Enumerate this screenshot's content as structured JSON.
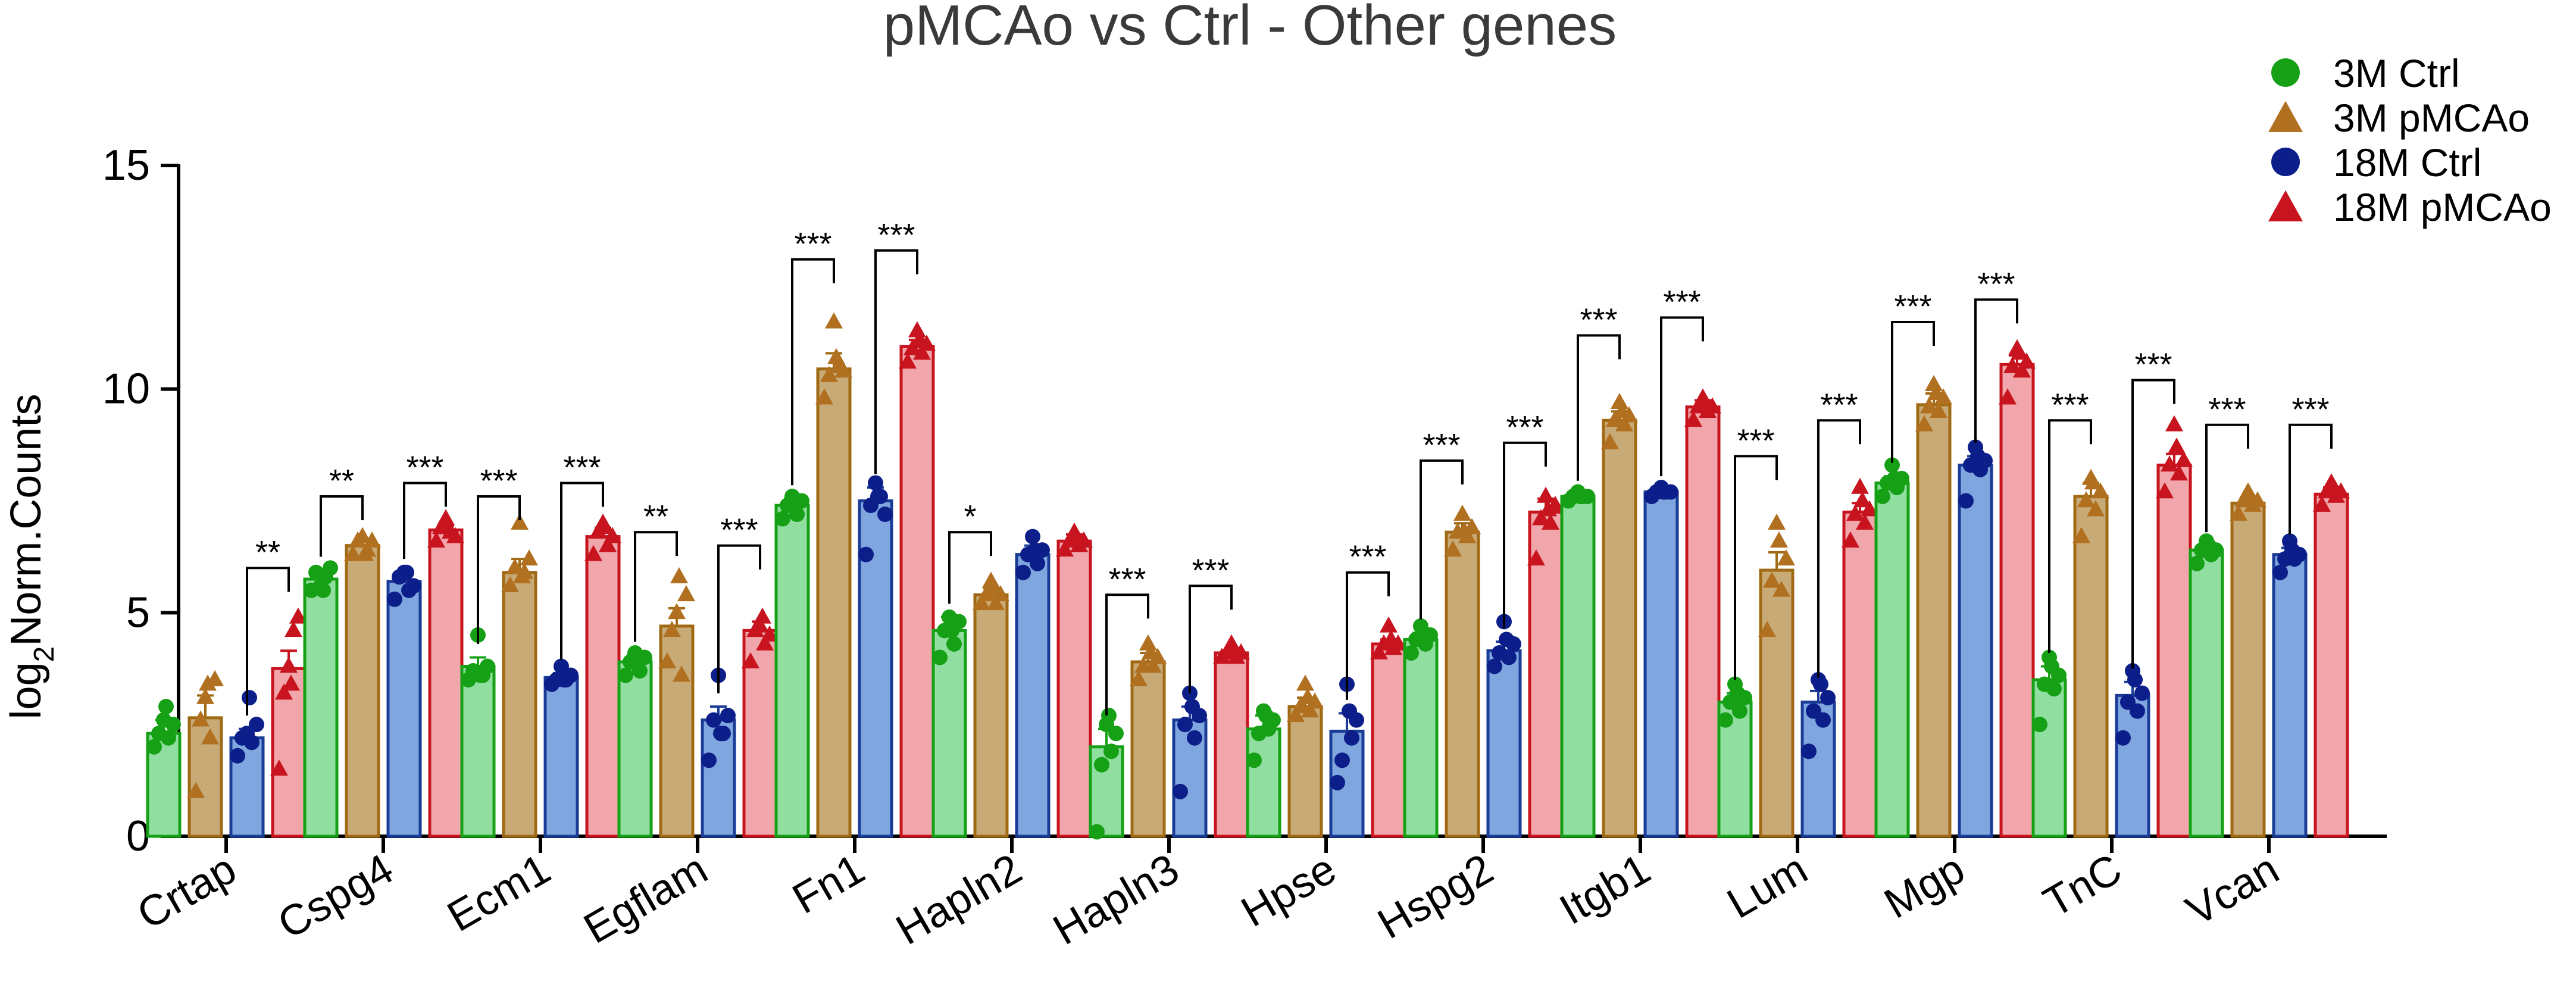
{
  "chart_data": {
    "type": "bar",
    "title": "pMCAo vs Ctrl - Other genes",
    "xlabel": "",
    "ylabel_parts": {
      "base": "log",
      "sub": "2",
      "rest": "Norm.Counts"
    },
    "ylim": [
      0,
      15
    ],
    "yticks": [
      "0",
      "5",
      "10",
      "15"
    ],
    "ytick_values": [
      0,
      5,
      10,
      15
    ],
    "legend_position": "top-right",
    "categories": [
      "Crtap",
      "Cspg4",
      "Ecm1",
      "Egflam",
      "Fn1",
      "Hapln2",
      "Hapln3",
      "Hpse",
      "Hspg2",
      "Itgb1",
      "Lum",
      "Mgp",
      "TnC",
      "Vcan"
    ],
    "series": [
      {
        "name": "3M Ctrl",
        "marker": "circle",
        "fill": "#90dfa0",
        "stroke": "#16a016",
        "point": "#16a016",
        "values": [
          2.3,
          5.75,
          3.8,
          3.9,
          7.4,
          4.6,
          2.0,
          2.4,
          4.4,
          7.6,
          3.0,
          7.9,
          3.5,
          6.4
        ],
        "errors": [
          0.3,
          0.2,
          0.2,
          0.15,
          0.15,
          0.3,
          0.4,
          0.3,
          0.15,
          0.05,
          0.2,
          0.15,
          0.3,
          0.1
        ]
      },
      {
        "name": "3M pMCAo",
        "marker": "triangle",
        "fill": "#c8aa76",
        "stroke": "#a06a14",
        "point": "#b07020",
        "values": [
          2.65,
          6.5,
          5.9,
          4.7,
          10.45,
          5.4,
          3.9,
          2.9,
          6.8,
          9.3,
          5.95,
          9.65,
          7.6,
          7.45
        ],
        "errors": [
          0.5,
          0.15,
          0.3,
          0.4,
          0.35,
          0.15,
          0.2,
          0.2,
          0.2,
          0.2,
          0.4,
          0.25,
          0.3,
          0.1
        ]
      },
      {
        "name": "18M Ctrl",
        "marker": "circle",
        "fill": "#7fa6de",
        "stroke": "#1a3c96",
        "point": "#0c1e8a",
        "values": [
          2.2,
          5.7,
          3.55,
          2.6,
          7.5,
          6.3,
          2.6,
          2.35,
          4.15,
          7.7,
          3.0,
          8.3,
          3.15,
          6.3
        ],
        "errors": [
          0.2,
          0.2,
          0.1,
          0.3,
          0.3,
          0.2,
          0.3,
          0.4,
          0.2,
          0.05,
          0.25,
          0.2,
          0.3,
          0.15
        ]
      },
      {
        "name": "18M pMCAo",
        "marker": "triangle",
        "fill": "#f0a6aa",
        "stroke": "#c8141e",
        "point": "#c8141e",
        "values": [
          3.75,
          6.85,
          6.7,
          4.6,
          10.95,
          6.6,
          4.1,
          4.3,
          7.25,
          9.6,
          7.25,
          10.55,
          8.3,
          7.65
        ],
        "errors": [
          0.4,
          0.1,
          0.2,
          0.2,
          0.15,
          0.15,
          0.05,
          0.1,
          0.3,
          0.15,
          0.2,
          0.2,
          0.25,
          0.15
        ]
      }
    ],
    "points": [
      [
        [
          2.0,
          2.3,
          2.6,
          2.2,
          2.5,
          2.9
        ],
        [
          1.0,
          2.6,
          3.1,
          2.2,
          3.5,
          3.4
        ],
        [
          1.8,
          2.2,
          2.3,
          2.1,
          2.5,
          3.1
        ],
        [
          1.5,
          3.2,
          3.8,
          4.6,
          4.9,
          3.4
        ]
      ],
      [
        [
          5.5,
          5.9,
          5.6,
          5.8,
          6.0,
          5.5
        ],
        [
          6.3,
          6.6,
          6.7,
          6.4,
          6.6,
          6.3
        ],
        [
          5.3,
          5.8,
          5.9,
          5.5,
          5.6,
          5.9
        ],
        [
          6.6,
          6.9,
          7.1,
          6.8,
          6.7,
          6.9
        ]
      ],
      [
        [
          3.5,
          3.7,
          4.5,
          3.6,
          3.8,
          3.6
        ],
        [
          5.6,
          6.0,
          7.0,
          5.9,
          6.2,
          5.8
        ],
        [
          3.4,
          3.5,
          3.8,
          3.5,
          3.6,
          3.5
        ],
        [
          6.3,
          6.8,
          7.0,
          6.5,
          6.7,
          6.9
        ]
      ],
      [
        [
          3.6,
          3.9,
          4.1,
          3.7,
          4.0,
          4.0
        ],
        [
          3.9,
          4.6,
          5.0,
          3.6,
          5.4,
          5.8
        ],
        [
          1.7,
          2.6,
          3.6,
          2.3,
          2.7,
          2.3
        ],
        [
          3.9,
          4.6,
          4.7,
          4.3,
          4.5,
          4.9
        ]
      ],
      [
        [
          7.1,
          7.4,
          7.6,
          7.2,
          7.5,
          7.5
        ],
        [
          9.8,
          10.3,
          11.5,
          10.5,
          10.4,
          10.7
        ],
        [
          6.3,
          7.4,
          7.9,
          7.6,
          7.2,
          7.6
        ],
        [
          10.6,
          10.9,
          11.3,
          10.8,
          11.0,
          11.1
        ]
      ],
      [
        [
          4.0,
          4.6,
          4.9,
          4.3,
          4.8,
          4.6
        ],
        [
          5.2,
          5.4,
          5.7,
          5.2,
          5.4,
          5.5
        ],
        [
          5.9,
          6.3,
          6.7,
          6.1,
          6.4,
          6.4
        ],
        [
          6.4,
          6.6,
          6.8,
          6.5,
          6.6,
          6.7
        ]
      ],
      [
        [
          0.1,
          1.6,
          2.5,
          1.9,
          2.3,
          2.7
        ],
        [
          3.5,
          3.8,
          4.3,
          3.8,
          4.0,
          4.1
        ],
        [
          1.0,
          2.5,
          3.2,
          2.2,
          2.7,
          2.9
        ],
        [
          4.0,
          4.1,
          4.3,
          4.0,
          4.1,
          4.2
        ]
      ],
      [
        [
          1.7,
          2.3,
          2.8,
          2.4,
          2.6,
          2.7
        ],
        [
          2.7,
          2.9,
          3.4,
          2.8,
          3.0,
          3.1
        ],
        [
          1.2,
          1.7,
          3.4,
          2.2,
          2.6,
          2.8
        ],
        [
          4.1,
          4.3,
          4.7,
          4.2,
          4.3,
          4.4
        ]
      ],
      [
        [
          4.1,
          4.4,
          4.7,
          4.3,
          4.5,
          4.4
        ],
        [
          6.4,
          6.8,
          7.2,
          6.7,
          6.9,
          6.8
        ],
        [
          3.8,
          4.1,
          4.8,
          4.0,
          4.3,
          4.4
        ],
        [
          6.2,
          7.1,
          7.6,
          7.0,
          7.4,
          7.3
        ]
      ],
      [
        [
          7.5,
          7.6,
          7.7,
          7.6,
          7.6,
          7.6
        ],
        [
          8.8,
          9.3,
          9.7,
          9.2,
          9.4,
          9.5
        ],
        [
          7.6,
          7.7,
          7.8,
          7.7,
          7.7,
          7.7
        ],
        [
          9.3,
          9.6,
          9.8,
          9.5,
          9.6,
          9.7
        ]
      ],
      [
        [
          2.6,
          3.0,
          3.4,
          2.8,
          3.1,
          3.2
        ],
        [
          4.6,
          5.7,
          7.0,
          5.5,
          6.2,
          6.6
        ],
        [
          1.9,
          2.8,
          3.5,
          2.6,
          3.1,
          3.4
        ],
        [
          6.6,
          7.2,
          7.8,
          7.0,
          7.3,
          7.5
        ]
      ],
      [
        [
          7.6,
          7.9,
          8.3,
          7.8,
          8.0,
          8.0
        ],
        [
          9.2,
          9.6,
          10.1,
          9.5,
          9.8,
          9.9
        ],
        [
          7.5,
          8.3,
          8.7,
          8.2,
          8.4,
          8.5
        ],
        [
          9.8,
          10.5,
          10.9,
          10.4,
          10.6,
          10.8
        ]
      ],
      [
        [
          2.5,
          3.4,
          4.0,
          3.3,
          3.6,
          3.8
        ],
        [
          6.7,
          7.5,
          8.0,
          7.3,
          7.7,
          7.9
        ],
        [
          2.2,
          3.0,
          3.7,
          2.8,
          3.2,
          3.5
        ],
        [
          7.7,
          8.3,
          9.2,
          8.1,
          8.4,
          8.7
        ]
      ],
      [
        [
          6.1,
          6.4,
          6.6,
          6.3,
          6.4,
          6.5
        ],
        [
          7.2,
          7.5,
          7.7,
          7.4,
          7.5,
          7.6
        ],
        [
          5.9,
          6.2,
          6.6,
          6.2,
          6.3,
          6.4
        ],
        [
          7.4,
          7.7,
          7.9,
          7.6,
          7.7,
          7.8
        ]
      ]
    ],
    "significance": [
      {
        "category": 0,
        "pair": "18M",
        "label": "**",
        "y": 6.0
      },
      {
        "category": 1,
        "pair": "3M",
        "label": "**",
        "y": 7.6
      },
      {
        "category": 1,
        "pair": "18M",
        "label": "***",
        "y": 7.9
      },
      {
        "category": 2,
        "pair": "3M",
        "label": "***",
        "y": 7.6
      },
      {
        "category": 2,
        "pair": "18M",
        "label": "***",
        "y": 7.9
      },
      {
        "category": 3,
        "pair": "3M",
        "label": "**",
        "y": 6.8
      },
      {
        "category": 3,
        "pair": "18M",
        "label": "***",
        "y": 6.5
      },
      {
        "category": 4,
        "pair": "3M",
        "label": "***",
        "y": 12.9
      },
      {
        "category": 4,
        "pair": "18M",
        "label": "***",
        "y": 13.1
      },
      {
        "category": 5,
        "pair": "3M",
        "label": "*",
        "y": 6.8
      },
      {
        "category": 6,
        "pair": "3M",
        "label": "***",
        "y": 5.4
      },
      {
        "category": 6,
        "pair": "18M",
        "label": "***",
        "y": 5.6
      },
      {
        "category": 7,
        "pair": "18M",
        "label": "***",
        "y": 5.9
      },
      {
        "category": 8,
        "pair": "3M",
        "label": "***",
        "y": 8.4
      },
      {
        "category": 8,
        "pair": "18M",
        "label": "***",
        "y": 8.8
      },
      {
        "category": 9,
        "pair": "3M",
        "label": "***",
        "y": 11.2
      },
      {
        "category": 9,
        "pair": "18M",
        "label": "***",
        "y": 11.6
      },
      {
        "category": 10,
        "pair": "3M",
        "label": "***",
        "y": 8.5
      },
      {
        "category": 10,
        "pair": "18M",
        "label": "***",
        "y": 9.3
      },
      {
        "category": 11,
        "pair": "3M",
        "label": "***",
        "y": 11.5
      },
      {
        "category": 11,
        "pair": "18M",
        "label": "***",
        "y": 12.0
      },
      {
        "category": 12,
        "pair": "3M",
        "label": "***",
        "y": 9.3
      },
      {
        "category": 12,
        "pair": "18M",
        "label": "***",
        "y": 10.2
      },
      {
        "category": 13,
        "pair": "3M",
        "label": "***",
        "y": 9.2
      },
      {
        "category": 13,
        "pair": "18M",
        "label": "***",
        "y": 9.2
      }
    ]
  }
}
